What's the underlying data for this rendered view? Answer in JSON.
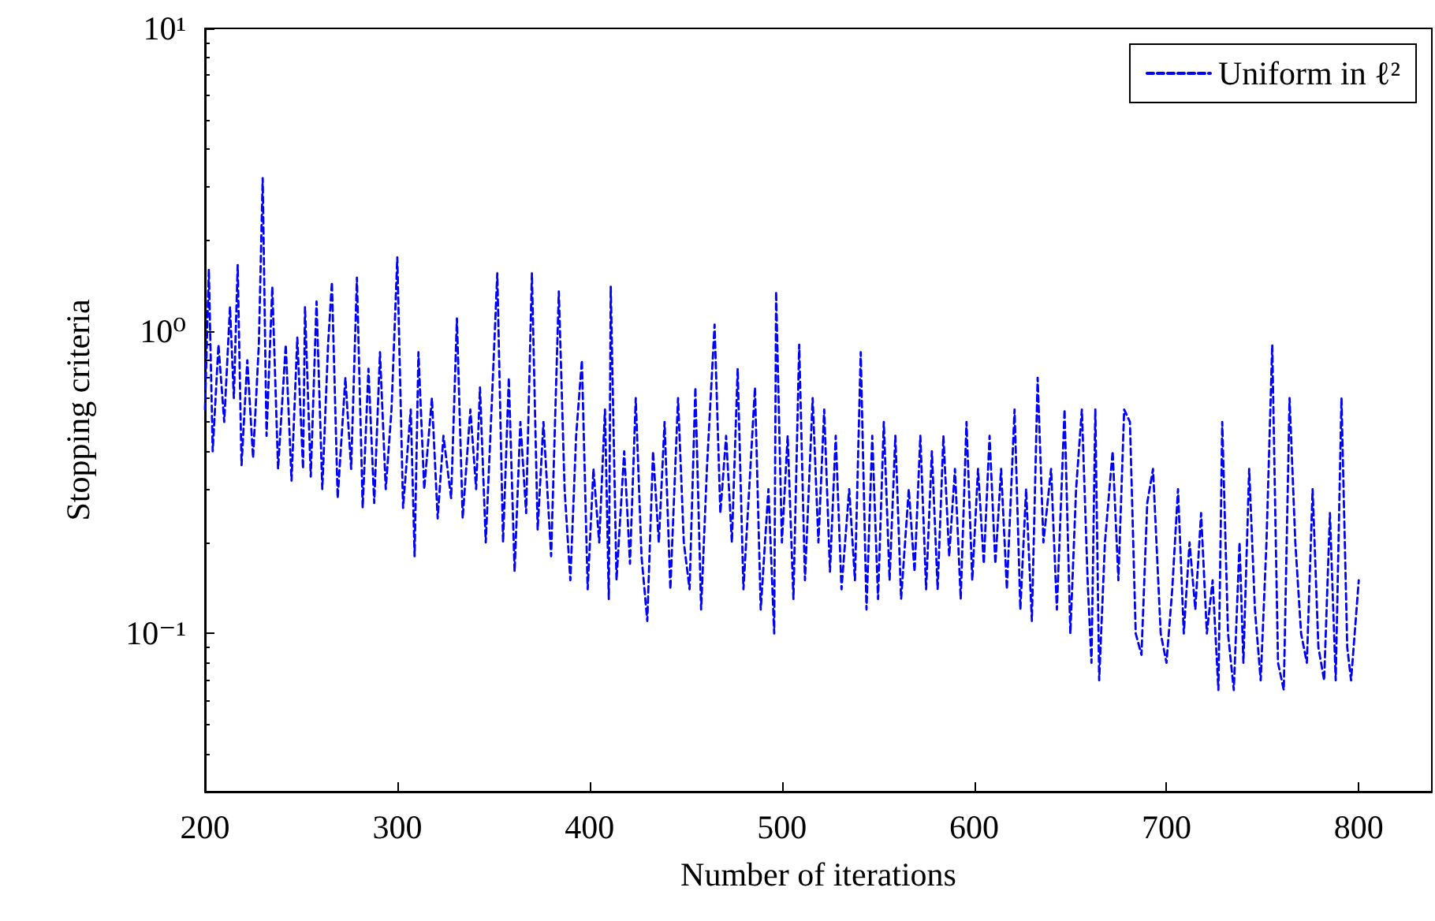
{
  "chart_data": {
    "type": "line",
    "xlabel": "Number of iterations",
    "ylabel": "Stopping criteria",
    "xlim": [
      200,
      838
    ],
    "xticks": [
      200,
      300,
      400,
      500,
      600,
      700,
      800
    ],
    "ylim": [
      0.03,
      10
    ],
    "yticks": [
      {
        "value": 0.1,
        "label": "10⁻¹"
      },
      {
        "value": 1,
        "label": "10⁰"
      },
      {
        "value": 10,
        "label": "10¹"
      }
    ],
    "log": "y",
    "grid": false,
    "legend": "top right",
    "marker": "none",
    "line_style": "dashed",
    "series": [
      {
        "name": "Uniform in ℓ²",
        "color": "#0000ff",
        "x": [
          200,
          202,
          204,
          207,
          210,
          213,
          215,
          217,
          219,
          222,
          225,
          228,
          230,
          232,
          235,
          238,
          242,
          245,
          248,
          251,
          252,
          255,
          258,
          261,
          264,
          266,
          269,
          273,
          276,
          279,
          282,
          285,
          288,
          291,
          294,
          297,
          300,
          303,
          307,
          309,
          311,
          314,
          318,
          321,
          324,
          328,
          331,
          334,
          338,
          341,
          343,
          346,
          349,
          352,
          355,
          358,
          361,
          364,
          367,
          370,
          373,
          376,
          380,
          384,
          387,
          390,
          393,
          396,
          399,
          402,
          405,
          408,
          410,
          411,
          414,
          418,
          421,
          424,
          427,
          430,
          433,
          436,
          439,
          442,
          446,
          449,
          452,
          455,
          458,
          461,
          465,
          468,
          471,
          474,
          477,
          480,
          483,
          486,
          489,
          493,
          496,
          497,
          500,
          503,
          506,
          509,
          512,
          516,
          519,
          522,
          525,
          528,
          531,
          535,
          538,
          541,
          544,
          547,
          550,
          553,
          556,
          559,
          562,
          566,
          569,
          572,
          575,
          578,
          581,
          584,
          587,
          590,
          593,
          596,
          599,
          602,
          605,
          608,
          611,
          614,
          617,
          621,
          624,
          627,
          630,
          633,
          636,
          640,
          643,
          647,
          650,
          653,
          656,
          659,
          661,
          663,
          665,
          668,
          672,
          675,
          678,
          681,
          684,
          687,
          690,
          693,
          697,
          700,
          703,
          706,
          709,
          712,
          715,
          718,
          721,
          724,
          727,
          729,
          732,
          735,
          738,
          740,
          743,
          746,
          749,
          752,
          755,
          758,
          761,
          764,
          767,
          770,
          773,
          776,
          779,
          782,
          785,
          788,
          791,
          794,
          796,
          800
        ],
        "values": [
          0.55,
          1.6,
          0.4,
          0.9,
          0.5,
          1.2,
          0.6,
          1.65,
          0.36,
          0.8,
          0.38,
          0.9,
          3.2,
          0.45,
          1.4,
          0.35,
          0.9,
          0.32,
          0.95,
          0.35,
          1.2,
          0.33,
          1.25,
          0.3,
          0.9,
          1.45,
          0.28,
          0.7,
          0.35,
          1.5,
          0.26,
          0.75,
          0.27,
          0.85,
          0.3,
          0.55,
          1.75,
          0.26,
          0.55,
          0.18,
          0.85,
          0.3,
          0.6,
          0.24,
          0.45,
          0.28,
          1.1,
          0.24,
          0.55,
          0.3,
          0.65,
          0.2,
          0.55,
          1.55,
          0.2,
          0.7,
          0.16,
          0.5,
          0.25,
          1.55,
          0.22,
          0.5,
          0.18,
          1.35,
          0.3,
          0.15,
          0.45,
          0.8,
          0.14,
          0.35,
          0.2,
          0.55,
          0.13,
          1.4,
          0.15,
          0.4,
          0.17,
          0.6,
          0.18,
          0.11,
          0.4,
          0.2,
          0.5,
          0.14,
          0.6,
          0.2,
          0.14,
          0.65,
          0.12,
          0.35,
          1.05,
          0.25,
          0.45,
          0.2,
          0.75,
          0.14,
          0.3,
          0.65,
          0.12,
          0.3,
          0.1,
          1.35,
          0.2,
          0.45,
          0.13,
          0.9,
          0.15,
          0.6,
          0.2,
          0.55,
          0.16,
          0.45,
          0.14,
          0.3,
          0.15,
          0.85,
          0.12,
          0.45,
          0.13,
          0.5,
          0.15,
          0.45,
          0.13,
          0.3,
          0.16,
          0.45,
          0.14,
          0.4,
          0.14,
          0.45,
          0.18,
          0.35,
          0.13,
          0.5,
          0.15,
          0.35,
          0.17,
          0.45,
          0.17,
          0.35,
          0.14,
          0.55,
          0.12,
          0.3,
          0.11,
          0.7,
          0.2,
          0.35,
          0.12,
          0.55,
          0.1,
          0.3,
          0.55,
          0.15,
          0.08,
          0.55,
          0.07,
          0.2,
          0.4,
          0.15,
          0.55,
          0.5,
          0.1,
          0.085,
          0.27,
          0.35,
          0.1,
          0.08,
          0.14,
          0.3,
          0.1,
          0.2,
          0.12,
          0.25,
          0.1,
          0.15,
          0.065,
          0.5,
          0.1,
          0.065,
          0.2,
          0.08,
          0.35,
          0.12,
          0.07,
          0.2,
          0.9,
          0.08,
          0.065,
          0.6,
          0.2,
          0.1,
          0.08,
          0.3,
          0.09,
          0.07,
          0.25,
          0.07,
          0.6,
          0.09,
          0.07,
          0.15
        ]
      }
    ]
  }
}
